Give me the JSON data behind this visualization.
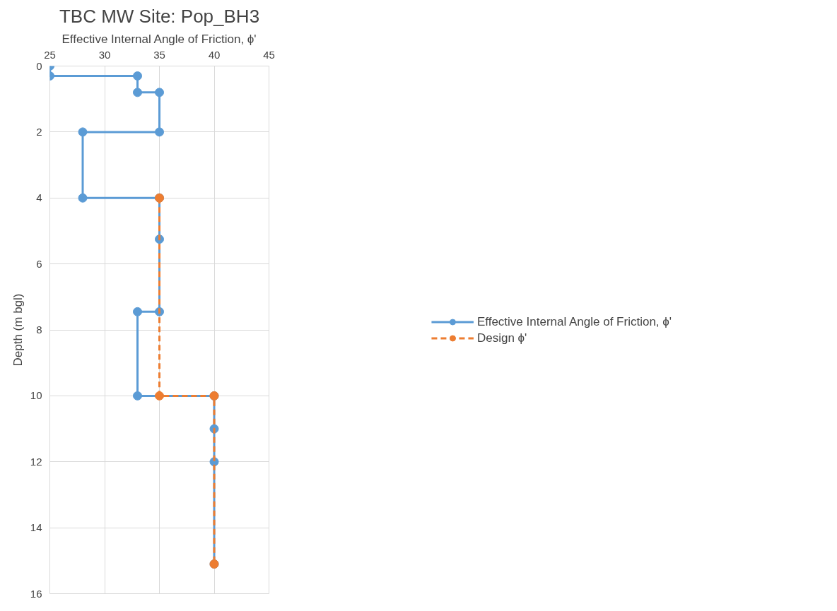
{
  "chart_data": {
    "type": "line",
    "title": "TBC MW Site: Pop_BH3",
    "xlabel": "Effective Internal Angle of Friction, ϕ'",
    "ylabel": "Depth (m bgl)",
    "xlim": [
      25,
      45
    ],
    "xticks": [
      25,
      30,
      35,
      40,
      45
    ],
    "ylim": [
      16,
      0
    ],
    "yticks": [
      0,
      2,
      4,
      6,
      8,
      10,
      12,
      14,
      16
    ],
    "grid": true,
    "legend": "right",
    "marker": "circle",
    "series": [
      {
        "name": "Effective Internal Angle of Friction, ϕ'",
        "color": "#5b9bd5",
        "line_style": "solid",
        "x": [
          25,
          25,
          33,
          33,
          35,
          35,
          28,
          28,
          35,
          35,
          35,
          33,
          33,
          40,
          40,
          40,
          40
        ],
        "values": [
          0,
          0.3,
          0.3,
          0.8,
          0.8,
          2,
          2,
          4,
          4,
          5.25,
          7.45,
          7.45,
          10,
          10,
          11,
          12,
          15.1
        ]
      },
      {
        "name": "Design ϕ'",
        "color": "#ed7d31",
        "line_style": "dashed",
        "x": [
          35,
          35,
          40,
          40
        ],
        "values": [
          4,
          10,
          10,
          15.1
        ]
      }
    ]
  }
}
